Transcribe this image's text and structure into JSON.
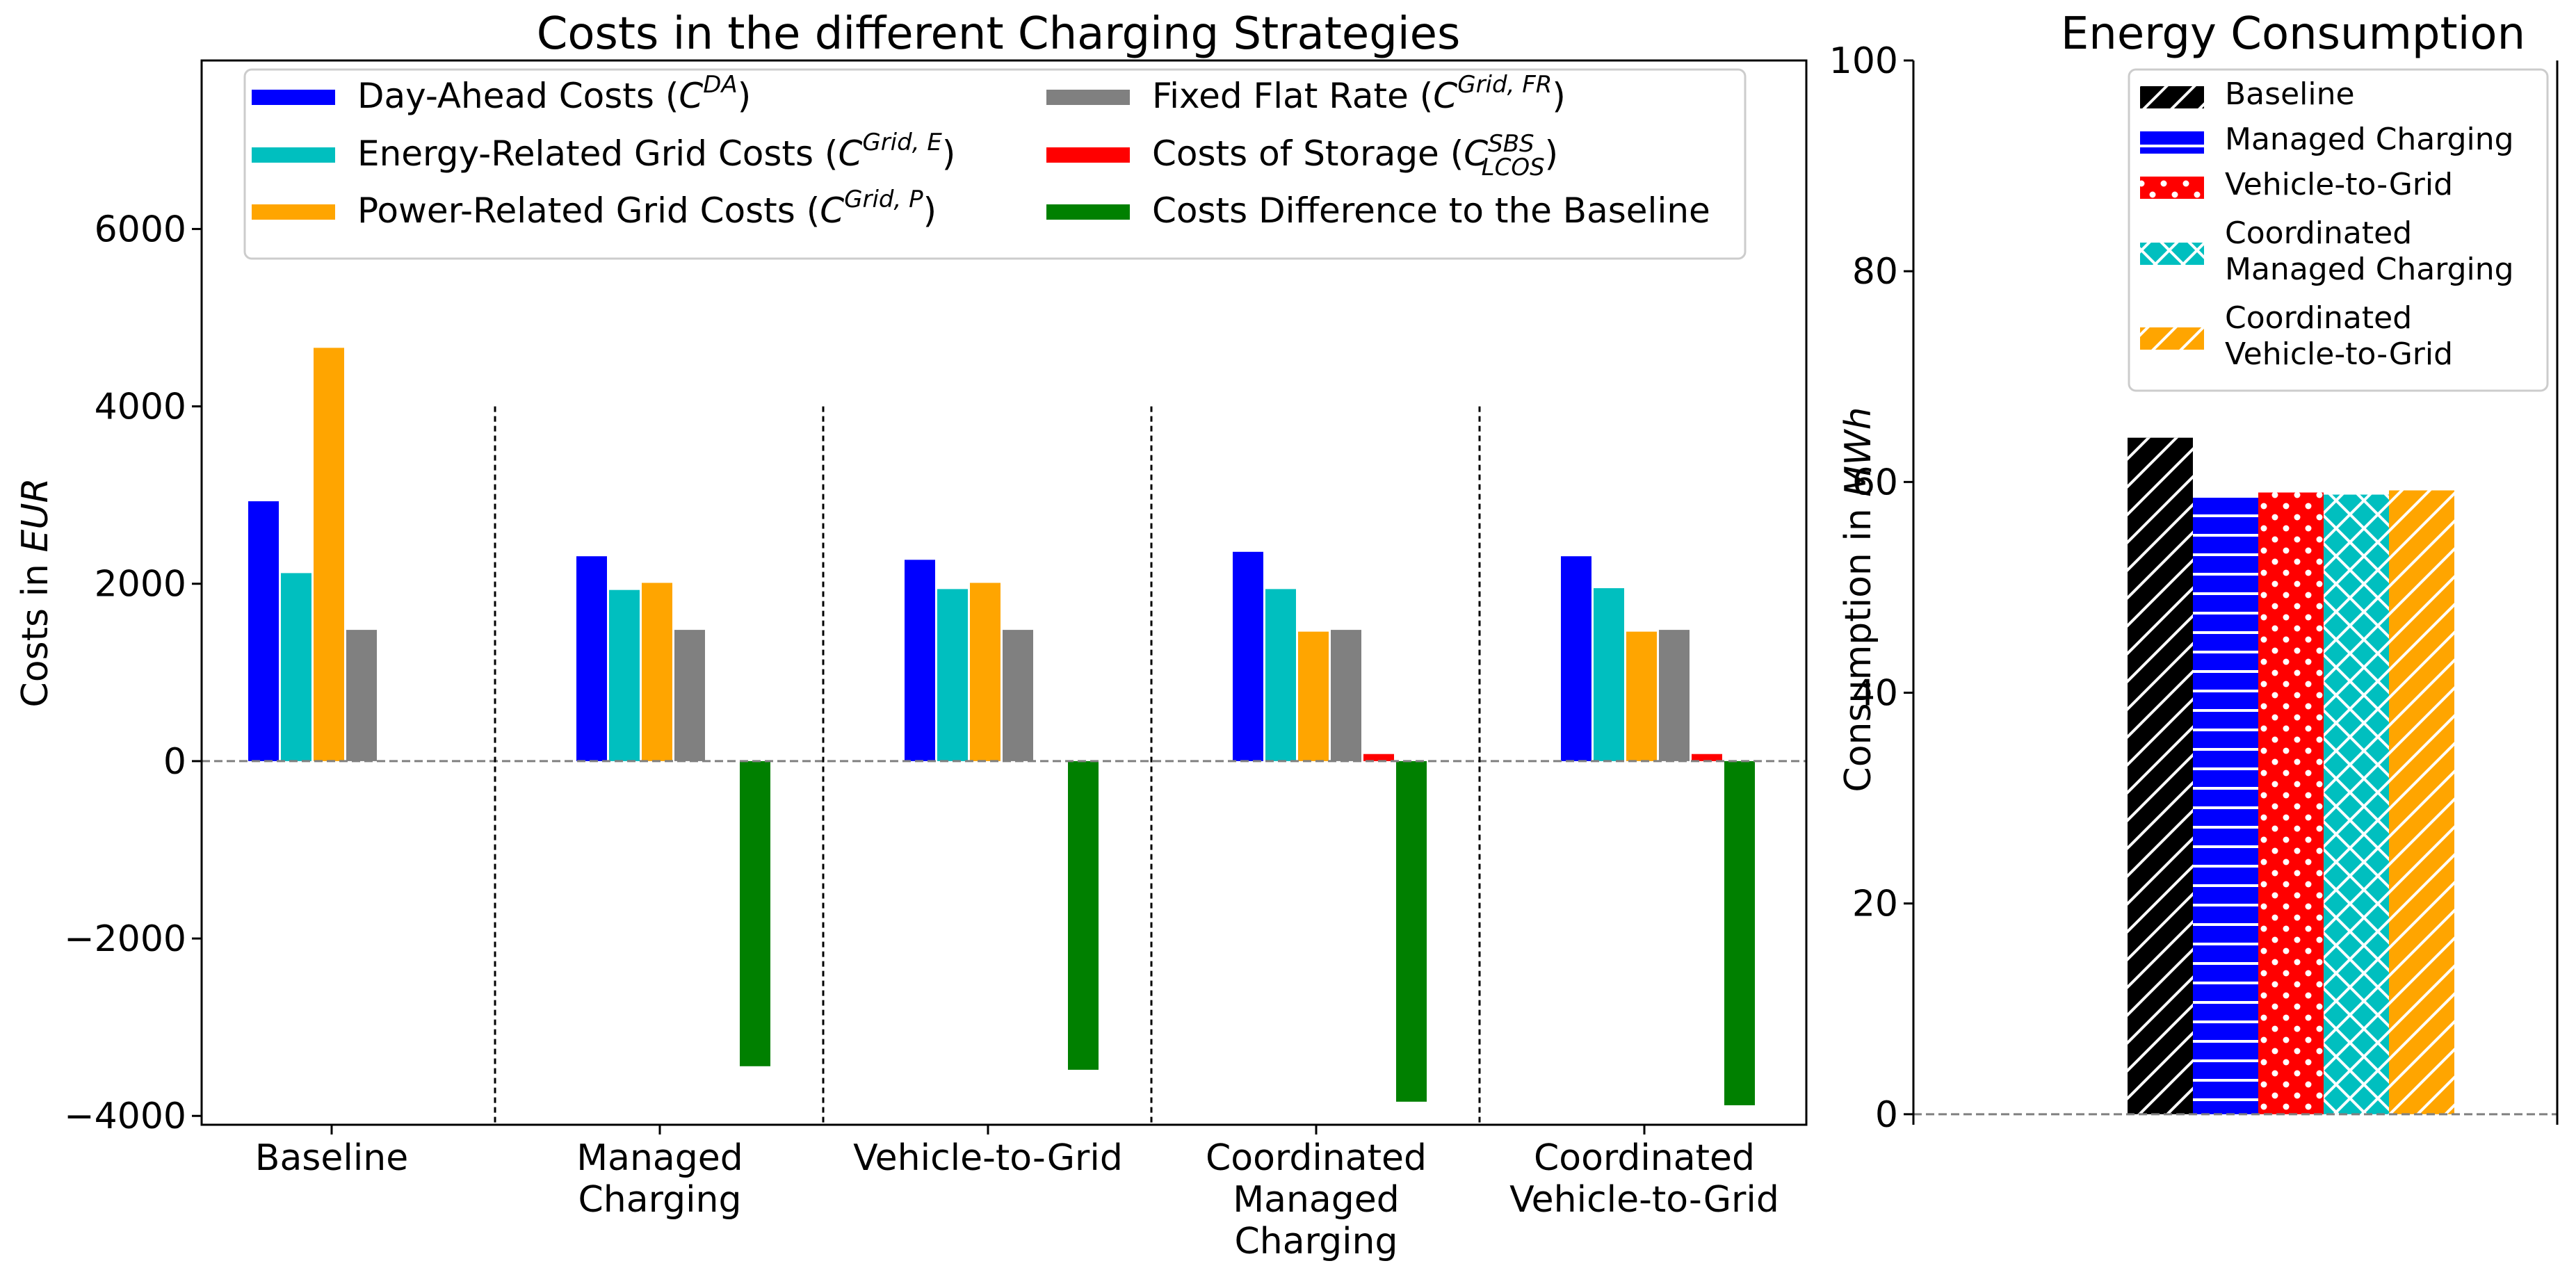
{
  "chart_data": [
    {
      "type": "bar",
      "title": "Costs in the different Charging Strategies",
      "ylabel": "Costs in EUR",
      "ylim": [
        -4100,
        7900
      ],
      "yticks": [
        "−4000",
        "−2000",
        "0",
        "2000",
        "4000",
        "6000"
      ],
      "categories": [
        [
          "Baseline"
        ],
        [
          "Managed",
          "Charging"
        ],
        [
          "Vehicle-to-Grid"
        ],
        [
          "Coordinated",
          "Managed",
          "Charging"
        ],
        [
          "Coordinated",
          "Vehicle-to-Grid"
        ]
      ],
      "series": [
        {
          "name": "Day-Ahead Costs (C^DA)",
          "color": "#0000ff",
          "values": [
            2930,
            2310,
            2270,
            2360,
            2310
          ]
        },
        {
          "name": "Energy-Related Grid Costs (C^Grid,E)",
          "color": "#00bfbf",
          "values": [
            2120,
            1930,
            1940,
            1940,
            1950
          ]
        },
        {
          "name": "Power-Related Grid Costs (C^Grid,P)",
          "color": "#ffa500",
          "values": [
            4660,
            2010,
            2010,
            1460,
            1460
          ]
        },
        {
          "name": "Fixed Flat Rate (C^Grid,FR)",
          "color": "#808080",
          "values": [
            1480,
            1480,
            1480,
            1480,
            1480
          ]
        },
        {
          "name": "Costs of Storage (C^SBS_LCOS)",
          "color": "#ff0000",
          "values": [
            0,
            0,
            0,
            80,
            80
          ]
        },
        {
          "name": "Costs Difference to the Baseline",
          "color": "#008000",
          "values": [
            0,
            -3440,
            -3480,
            -3840,
            -3880
          ]
        }
      ],
      "legend": [
        {
          "id": "da",
          "text": "Day-Ahead Costs (",
          "base": "C",
          "sup": "DA",
          "sub": "",
          "close": ")",
          "color": "#0000ff"
        },
        {
          "id": "ge",
          "text": "Energy-Related Grid Costs (",
          "base": "C",
          "sup": "Grid, E",
          "sub": "",
          "close": ")",
          "color": "#00bfbf"
        },
        {
          "id": "gp",
          "text": "Power-Related Grid Costs (",
          "base": "C",
          "sup": "Grid, P",
          "sub": "",
          "close": ")",
          "color": "#ffa500"
        },
        {
          "id": "fr",
          "text": "Fixed Flat Rate (",
          "base": "C",
          "sup": "Grid, FR",
          "sub": "",
          "close": ")",
          "color": "#808080"
        },
        {
          "id": "st",
          "text": "Costs of Storage (",
          "base": "C",
          "sup": "SBS",
          "sub": "LCOS",
          "close": ")",
          "color": "#ff0000"
        },
        {
          "id": "cd",
          "text": "Costs Difference to the Baseline",
          "base": "",
          "sup": "",
          "sub": "",
          "close": "",
          "color": "#008000"
        }
      ]
    },
    {
      "type": "bar",
      "title": "Energy Consumption",
      "ylabel": "Consumption in MWh",
      "ylim": [
        -1,
        100
      ],
      "yticks": [
        "0",
        "20",
        "40",
        "60",
        "80",
        "100"
      ],
      "series": [
        {
          "name": "Baseline",
          "color": "#000000",
          "pattern": "diag",
          "value": 64.2
        },
        {
          "name": "Managed Charging",
          "color": "#0000ff",
          "pattern": "horiz",
          "value": 58.6
        },
        {
          "name": "Vehicle-to-Grid",
          "color": "#ff0000",
          "pattern": "dots",
          "value": 59.0
        },
        {
          "name": "Coordinated\nManaged Charging",
          "color": "#00bfbf",
          "pattern": "cross",
          "value": 58.8
        },
        {
          "name": "Coordinated\nVehicle-to-Grid",
          "color": "#ffa500",
          "pattern": "diag",
          "value": 59.2
        }
      ]
    }
  ]
}
